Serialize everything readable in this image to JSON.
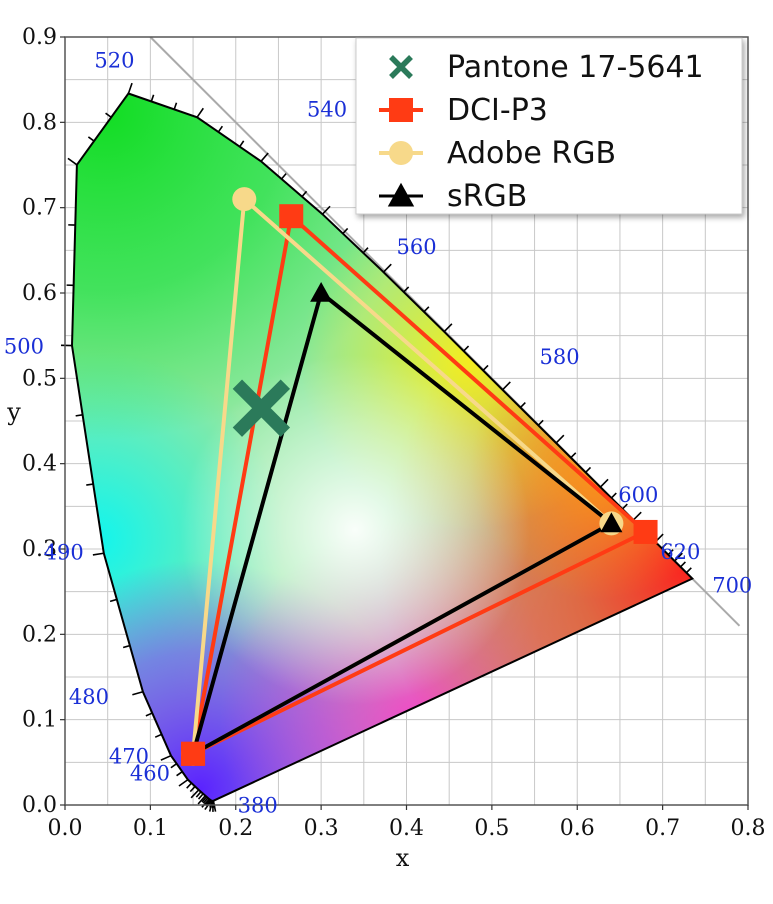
{
  "chart_data": {
    "type": "scatter",
    "title": "",
    "xlabel": "x",
    "ylabel": "y",
    "xlim": [
      0.0,
      0.8
    ],
    "ylim": [
      0.0,
      0.9
    ],
    "x_ticks": [
      "0.0",
      "0.1",
      "0.2",
      "0.3",
      "0.4",
      "0.5",
      "0.6",
      "0.7",
      "0.8"
    ],
    "y_ticks": [
      "0.0",
      "0.1",
      "0.2",
      "0.3",
      "0.4",
      "0.5",
      "0.6",
      "0.7",
      "0.8",
      "0.9"
    ],
    "grid": true,
    "legend_position": "top-right",
    "spectral_locus": [
      [
        0.1741,
        0.005
      ],
      [
        0.1738,
        0.0049
      ],
      [
        0.1733,
        0.0048
      ],
      [
        0.1726,
        0.0048
      ],
      [
        0.1714,
        0.0051
      ],
      [
        0.1689,
        0.0069
      ],
      [
        0.1644,
        0.0109
      ],
      [
        0.1566,
        0.0177
      ],
      [
        0.144,
        0.0297
      ],
      [
        0.1241,
        0.0578
      ],
      [
        0.0913,
        0.1327
      ],
      [
        0.0454,
        0.295
      ],
      [
        0.0082,
        0.5384
      ],
      [
        0.0139,
        0.7502
      ],
      [
        0.0743,
        0.8338
      ],
      [
        0.1547,
        0.8059
      ],
      [
        0.2296,
        0.7543
      ],
      [
        0.3016,
        0.6923
      ],
      [
        0.3731,
        0.6245
      ],
      [
        0.4441,
        0.5547
      ],
      [
        0.5125,
        0.4866
      ],
      [
        0.5752,
        0.4242
      ],
      [
        0.627,
        0.3725
      ],
      [
        0.6658,
        0.334
      ],
      [
        0.6915,
        0.3083
      ],
      [
        0.714,
        0.2859
      ],
      [
        0.7347,
        0.2653
      ]
    ],
    "wavelength_labels": [
      {
        "text": "380",
        "x": 0.1741,
        "y": 0.005
      },
      {
        "text": "460",
        "x": 0.144,
        "y": 0.0297
      },
      {
        "text": "470",
        "x": 0.1241,
        "y": 0.0578
      },
      {
        "text": "480",
        "x": 0.0913,
        "y": 0.1327
      },
      {
        "text": "490",
        "x": 0.0454,
        "y": 0.295
      },
      {
        "text": "500",
        "x": 0.0082,
        "y": 0.5384
      },
      {
        "text": "520",
        "x": 0.0743,
        "y": 0.8338
      },
      {
        "text": "540",
        "x": 0.2296,
        "y": 0.7543
      },
      {
        "text": "560",
        "x": 0.3731,
        "y": 0.6245
      },
      {
        "text": "580",
        "x": 0.5125,
        "y": 0.4866
      },
      {
        "text": "600",
        "x": 0.627,
        "y": 0.3725
      },
      {
        "text": "620",
        "x": 0.6915,
        "y": 0.3083
      },
      {
        "text": "700",
        "x": 0.7347,
        "y": 0.2653
      }
    ],
    "series": [
      {
        "name": "Pantone 17-5641",
        "marker": "x",
        "color": "#2b7a5a",
        "points": [
          [
            0.23,
            0.465
          ]
        ]
      },
      {
        "name": "DCI-P3",
        "marker": "square",
        "color": "#ff3b14",
        "points": [
          [
            0.68,
            0.32
          ],
          [
            0.265,
            0.69
          ],
          [
            0.15,
            0.06
          ]
        ]
      },
      {
        "name": "Adobe RGB",
        "marker": "circle",
        "color": "#f7d98a",
        "points": [
          [
            0.64,
            0.33
          ],
          [
            0.21,
            0.71
          ],
          [
            0.15,
            0.06
          ]
        ]
      },
      {
        "name": "sRGB",
        "marker": "triangle",
        "color": "#000000",
        "points": [
          [
            0.64,
            0.33
          ],
          [
            0.3,
            0.6
          ],
          [
            0.15,
            0.06
          ]
        ]
      }
    ]
  }
}
